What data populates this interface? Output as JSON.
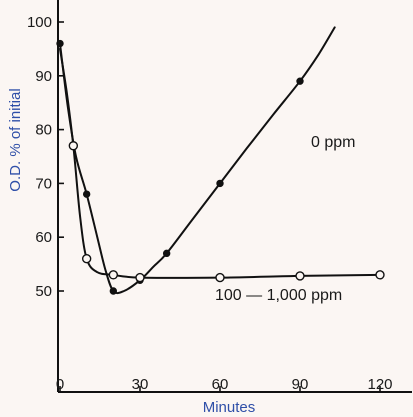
{
  "chart_data": {
    "type": "line",
    "xlabel": "Minutes",
    "ylabel": "O.D. % of initial",
    "xlim": [
      0,
      125
    ],
    "ylim": [
      30,
      103
    ],
    "x_ticks": [
      0,
      30,
      60,
      90,
      120
    ],
    "y_ticks": [
      50,
      60,
      70,
      80,
      90,
      100
    ],
    "grid": false,
    "legend": "none",
    "colors": {
      "line": "#111111",
      "axis": "#111111",
      "axis_title": "#2f4fa8",
      "background": "#fbf6f3"
    },
    "series": [
      {
        "name": "0 ppm",
        "marker": "filled-circle",
        "points": [
          {
            "x": 0,
            "y": 96
          },
          {
            "x": 10,
            "y": 68
          },
          {
            "x": 20,
            "y": 50
          },
          {
            "x": 30,
            "y": 52
          },
          {
            "x": 40,
            "y": 57
          },
          {
            "x": 60,
            "y": 70
          },
          {
            "x": 90,
            "y": 89
          }
        ],
        "curve": [
          [
            0,
            96
          ],
          [
            3,
            84
          ],
          [
            6,
            75
          ],
          [
            10,
            68
          ],
          [
            14,
            60
          ],
          [
            17,
            54
          ],
          [
            20,
            50
          ],
          [
            24,
            50
          ],
          [
            30,
            52
          ],
          [
            35,
            54.5
          ],
          [
            40,
            57
          ],
          [
            50,
            63.5
          ],
          [
            60,
            70
          ],
          [
            70,
            76.5
          ],
          [
            80,
            82.8
          ],
          [
            90,
            89
          ],
          [
            97,
            94
          ],
          [
            103,
            99
          ]
        ]
      },
      {
        "name": "100 — 1,000 ppm",
        "marker": "open-circle",
        "points": [
          {
            "x": 5,
            "y": 77
          },
          {
            "x": 10,
            "y": 56
          },
          {
            "x": 20,
            "y": 53
          },
          {
            "x": 30,
            "y": 52.5
          },
          {
            "x": 60,
            "y": 52.5
          },
          {
            "x": 90,
            "y": 52.8
          },
          {
            "x": 120,
            "y": 53
          }
        ],
        "curve": [
          [
            0,
            95
          ],
          [
            2.5,
            87
          ],
          [
            5,
            77
          ],
          [
            7.5,
            64
          ],
          [
            10,
            56
          ],
          [
            14,
            53.5
          ],
          [
            20,
            53
          ],
          [
            30,
            52.5
          ],
          [
            60,
            52.5
          ],
          [
            90,
            52.8
          ],
          [
            120,
            53
          ]
        ]
      }
    ]
  }
}
